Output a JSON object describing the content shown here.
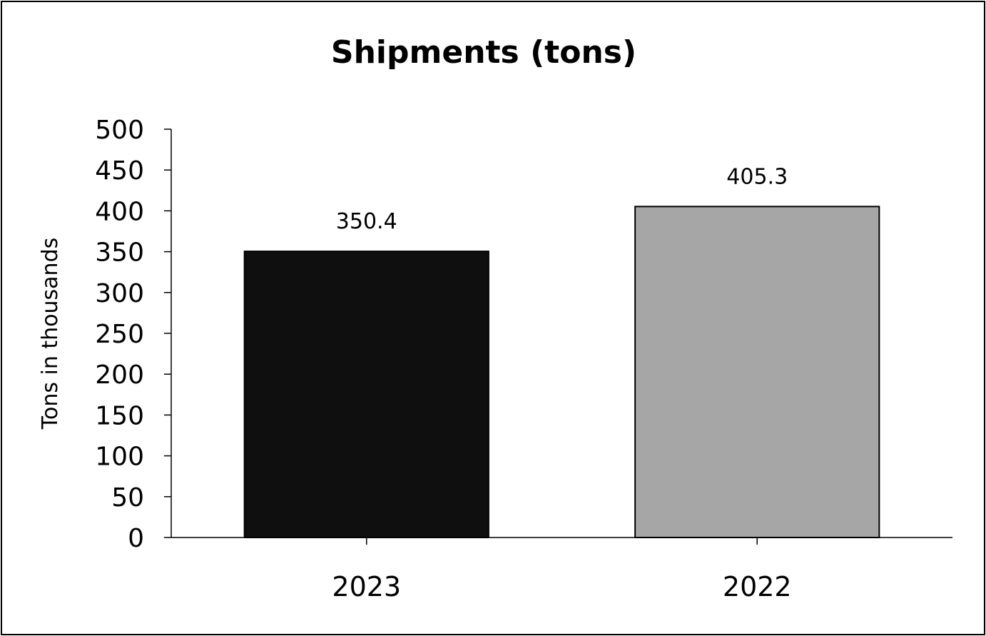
{
  "chart_data": {
    "type": "bar",
    "title": "Shipments (tons)",
    "xlabel": "",
    "ylabel": "Tons in thousands",
    "categories": [
      "2023",
      "2022"
    ],
    "values": [
      350.4,
      405.3
    ],
    "data_labels": [
      "350.4",
      "405.3"
    ],
    "colors": [
      "#0f0f0f",
      "#a6a6a6"
    ],
    "ylim": [
      0,
      500
    ],
    "yticks": [
      0,
      50,
      100,
      150,
      200,
      250,
      300,
      350,
      400,
      450,
      500
    ],
    "grid": false,
    "legend": "none"
  }
}
